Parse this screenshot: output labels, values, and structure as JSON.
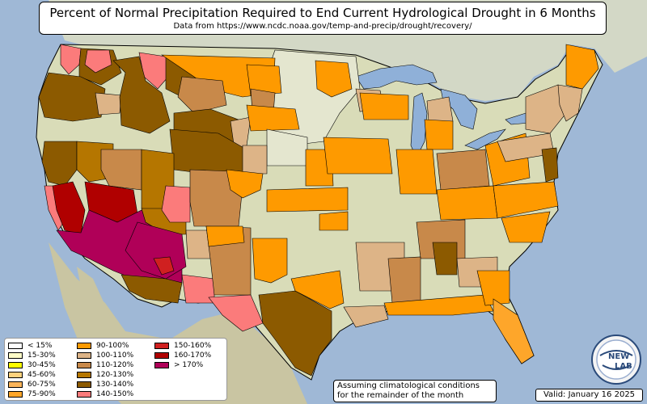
{
  "header": {
    "title": "Percent of Normal Precipitation Required to End Current Hydrological Drought in 6 Months",
    "subtitle": "Data from https://www.ncdc.noaa.gov/temp-and-precip/drought/recovery/"
  },
  "legend": {
    "items": [
      {
        "label": "< 15%",
        "color": "#fefefe"
      },
      {
        "label": "15-30%",
        "color": "#fefcc8"
      },
      {
        "label": "30-45%",
        "color": "#fefe00"
      },
      {
        "label": "45-60%",
        "color": "#fed27e"
      },
      {
        "label": "60-75%",
        "color": "#fbb55a"
      },
      {
        "label": "75-90%",
        "color": "#fea62a"
      },
      {
        "label": "90-100%",
        "color": "#fe9a00"
      },
      {
        "label": "100-110%",
        "color": "#ddb487"
      },
      {
        "label": "110-120%",
        "color": "#c8894a"
      },
      {
        "label": "120-130%",
        "color": "#b57600"
      },
      {
        "label": "130-140%",
        "color": "#8c5a00"
      },
      {
        "label": "140-150%",
        "color": "#fb7b7b"
      },
      {
        "label": "150-160%",
        "color": "#d02020"
      },
      {
        "label": "160-170%",
        "color": "#b00000"
      },
      {
        "label": "> 170%",
        "color": "#b00058"
      }
    ]
  },
  "note": {
    "line1": "Assuming climatological conditions",
    "line2": "for the remainder of the month"
  },
  "valid": "Valid: January 16 2025",
  "logo": {
    "text_top": "NEW",
    "text_bottom": "LAB"
  },
  "colors": {
    "ocean": "#9fb8d6",
    "land": "#d9dcb8",
    "land_north": "#e4e6cf",
    "canada": "#d3d8c6",
    "mexico": "#c9c5a2",
    "lakes": "#8fb0d8",
    "border": "#000000"
  }
}
